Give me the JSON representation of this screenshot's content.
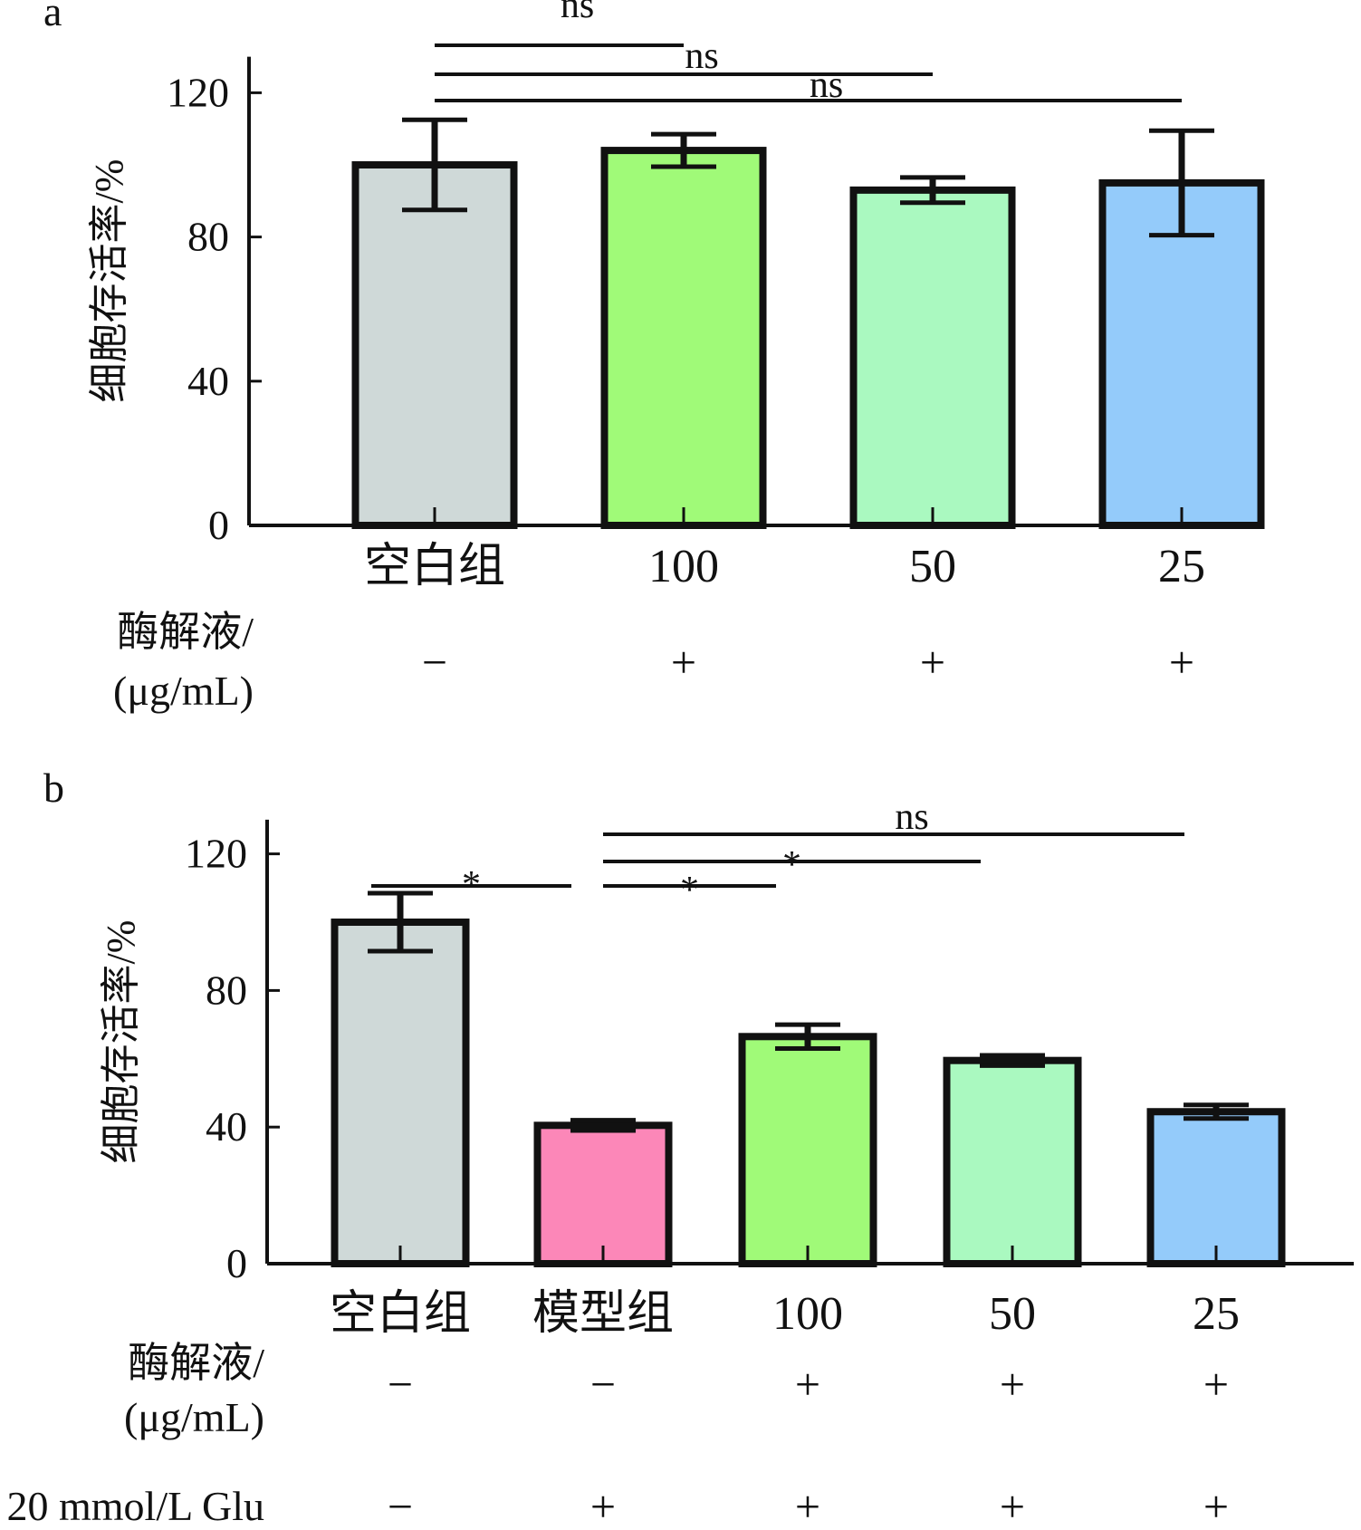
{
  "chart_data": [
    {
      "type": "bar",
      "panel": "a",
      "ylabel": "细胞存活率/%",
      "ylim": [
        0,
        130
      ],
      "yticks": [
        0,
        40,
        80,
        120
      ],
      "categories": [
        "空白组",
        "100",
        "50",
        "25"
      ],
      "values": [
        100,
        104,
        93,
        95
      ],
      "errors": [
        12.5,
        4.5,
        3.5,
        14.5
      ],
      "colors": [
        "#cfd9d8",
        "#a0fa78",
        "#aaf9c0",
        "#94cbfa"
      ],
      "rows": [
        {
          "label_lines": [
            "酶解液/",
            "(μg/mL)"
          ],
          "signs": [
            "−",
            "+",
            "+",
            "+"
          ]
        }
      ],
      "comparisons": [
        {
          "from": 0,
          "to": 1,
          "label": "ns"
        },
        {
          "from": 0,
          "to": 2,
          "label": "ns"
        },
        {
          "from": 0,
          "to": 3,
          "label": "ns"
        }
      ]
    },
    {
      "type": "bar",
      "panel": "b",
      "ylabel": "细胞存活率/%",
      "ylim": [
        0,
        130
      ],
      "yticks": [
        0,
        40,
        80,
        120
      ],
      "categories": [
        "空白组",
        "模型组",
        "100",
        "50",
        "25"
      ],
      "values": [
        100,
        40.5,
        66.5,
        59.5,
        44.5
      ],
      "errors": [
        8.5,
        1.5,
        3.5,
        1.5,
        2
      ],
      "colors": [
        "#cfd9d8",
        "#fc87b8",
        "#a0fa78",
        "#aaf9c0",
        "#94cbfa"
      ],
      "rows": [
        {
          "label_lines": [
            "酶解液/",
            "(μg/mL)"
          ],
          "signs": [
            "−",
            "−",
            "+",
            "+",
            "+"
          ]
        },
        {
          "label_lines": [
            "20 mmol/L Glu"
          ],
          "signs": [
            "−",
            "+",
            "+",
            "+",
            "+"
          ]
        }
      ],
      "comparisons": [
        {
          "from": 0,
          "to": 1,
          "label": "*"
        },
        {
          "from": 1,
          "to": 2,
          "label": "*"
        },
        {
          "from": 1,
          "to": 3,
          "label": "*"
        },
        {
          "from": 1,
          "to": 4,
          "label": "ns"
        }
      ]
    }
  ]
}
